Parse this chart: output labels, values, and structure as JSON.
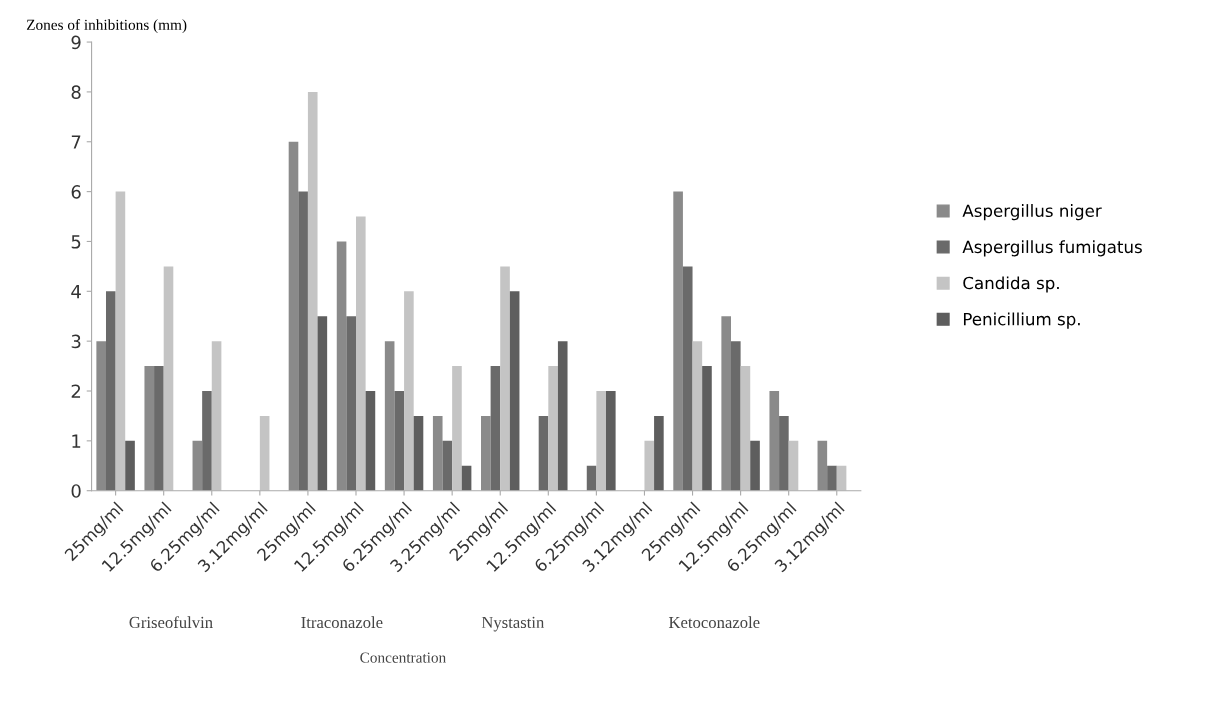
{
  "chart_data": {
    "type": "bar",
    "ylabel": "Zones of inhibitions (mm)",
    "categories": [
      "25mg/ml",
      "12.5mg/ml",
      "6.25mg/ml",
      "3.12mg/ml",
      "25mg/ml",
      "12.5mg/ml",
      "6.25mg/ml",
      "3.25mg/ml",
      "25mg/ml",
      "12.5mg/ml",
      "6.25mg/ml",
      "3.12mg/ml",
      "25mg/ml",
      "12.5mg/ml",
      "6.25mg/ml",
      "3.12mg/ml"
    ],
    "series": [
      {
        "name": "Aspergillus niger",
        "color": "#8a8a8a",
        "values": [
          3,
          2.5,
          1,
          0,
          7,
          5,
          3,
          1.5,
          1.5,
          0,
          0,
          0,
          6,
          3.5,
          2,
          1
        ]
      },
      {
        "name": "Aspergillus fumigatus",
        "color": "#6a6a6a",
        "values": [
          4,
          2.5,
          2,
          0,
          6,
          3.5,
          2,
          1,
          2.5,
          1.5,
          0.5,
          0,
          4.5,
          3,
          1.5,
          0.5
        ]
      },
      {
        "name": "Candida sp.",
        "color": "#c4c4c4",
        "values": [
          6,
          4.5,
          3,
          1.5,
          8,
          5.5,
          4,
          2.5,
          4.5,
          2.5,
          2,
          1,
          3,
          2.5,
          1,
          0.5
        ]
      },
      {
        "name": "Penicillium sp.",
        "color": "#5e5e5e",
        "values": [
          1,
          0,
          0,
          0,
          3.5,
          2,
          1.5,
          0.5,
          4,
          3,
          2,
          1.5,
          2.5,
          1,
          0,
          0
        ]
      }
    ],
    "ylim": [
      0,
      9
    ],
    "yticks": [
      0,
      1,
      2,
      3,
      4,
      5,
      6,
      7,
      8,
      9
    ],
    "grid": false,
    "legend": "right",
    "annotations": [
      "Griseofulvin",
      "Itraconazole",
      "Nystastin",
      "Ketoconazole",
      "Concentration"
    ]
  }
}
